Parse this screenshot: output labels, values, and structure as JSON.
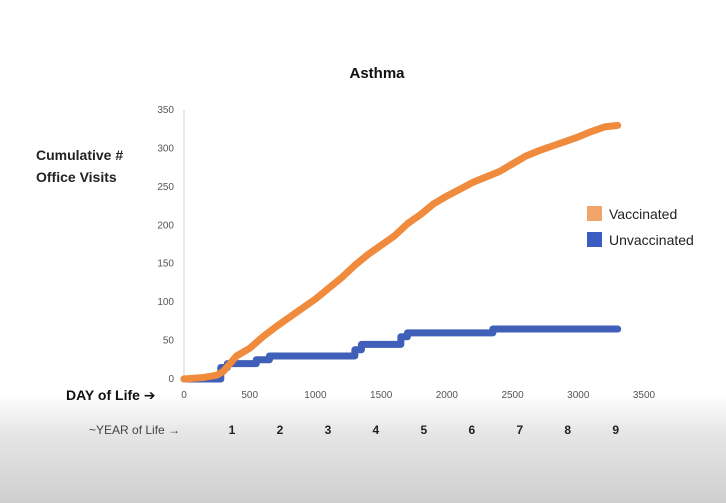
{
  "chart_data": {
    "type": "line",
    "title": "Asthma",
    "ylabel_lines": [
      "Cumulative #",
      "Office Visits"
    ],
    "xlabel": "DAY of Life",
    "xlabel_arrow": "➔",
    "secondary_xlabel": "~YEAR of Life",
    "secondary_xlabel_arrow": "→",
    "xlim": [
      0,
      3500
    ],
    "ylim": [
      0,
      350
    ],
    "x_ticks": [
      0,
      500,
      1000,
      1500,
      2000,
      2500,
      3000,
      3500
    ],
    "y_ticks": [
      0,
      50,
      100,
      150,
      200,
      250,
      300,
      350
    ],
    "year_ticks": [
      {
        "label": "1",
        "day": 365
      },
      {
        "label": "2",
        "day": 730
      },
      {
        "label": "3",
        "day": 1095
      },
      {
        "label": "4",
        "day": 1460
      },
      {
        "label": "5",
        "day": 1825
      },
      {
        "label": "6",
        "day": 2190
      },
      {
        "label": "7",
        "day": 2555
      },
      {
        "label": "8",
        "day": 2920
      },
      {
        "label": "9",
        "day": 3285
      }
    ],
    "legend_position": "right",
    "series": [
      {
        "name": "Vaccinated",
        "color": "#f08a3c",
        "swatch_color": "#f2a56a",
        "step": false,
        "x": [
          0,
          150,
          250,
          300,
          350,
          400,
          450,
          500,
          600,
          700,
          800,
          900,
          1000,
          1100,
          1200,
          1300,
          1400,
          1500,
          1600,
          1700,
          1800,
          1900,
          2000,
          2100,
          2200,
          2300,
          2400,
          2500,
          2600,
          2700,
          2800,
          2900,
          3000,
          3100,
          3200,
          3300
        ],
        "y": [
          0,
          2,
          5,
          10,
          20,
          30,
          35,
          40,
          55,
          68,
          80,
          92,
          104,
          118,
          132,
          148,
          162,
          174,
          186,
          202,
          214,
          228,
          238,
          247,
          256,
          263,
          270,
          280,
          290,
          297,
          303,
          309,
          315,
          322,
          328,
          330
        ]
      },
      {
        "name": "Unvaccinated",
        "color": "#3f5fb8",
        "swatch_color": "#3a5bbf",
        "step": true,
        "x": [
          0,
          280,
          330,
          420,
          500,
          550,
          650,
          1300,
          1350,
          1650,
          1700,
          2350,
          3300
        ],
        "y": [
          0,
          15,
          20,
          20,
          20,
          25,
          30,
          38,
          45,
          55,
          60,
          65,
          65
        ]
      }
    ]
  }
}
